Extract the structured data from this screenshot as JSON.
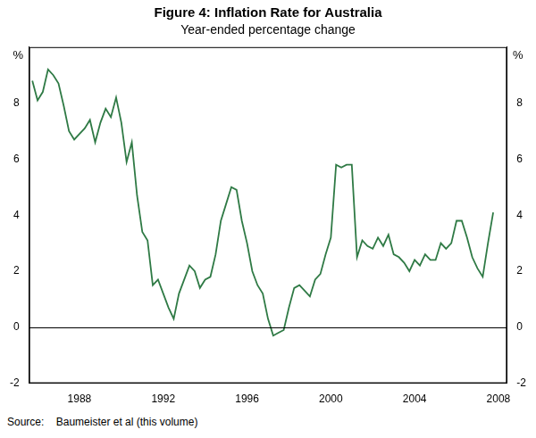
{
  "chart_data": {
    "type": "line",
    "title": "Figure 4: Inflation Rate for Australia",
    "subtitle": "Year-ended percentage change",
    "source_label": "Source:",
    "source": "Baumeister et al (this volume)",
    "y_label": "%",
    "y2_label": "%",
    "color": "#2f7a45",
    "grid": false,
    "x": [
      1985.75,
      1986,
      1986.25,
      1986.5,
      1986.75,
      1987,
      1987.25,
      1987.5,
      1987.75,
      1988,
      1988.25,
      1988.5,
      1988.75,
      1989,
      1989.25,
      1989.5,
      1989.75,
      1990,
      1990.25,
      1990.5,
      1990.75,
      1991,
      1991.25,
      1991.5,
      1991.75,
      1992,
      1992.25,
      1992.5,
      1992.75,
      1993,
      1993.25,
      1993.5,
      1993.75,
      1994,
      1994.25,
      1994.5,
      1994.75,
      1995,
      1995.25,
      1995.5,
      1995.75,
      1996,
      1996.25,
      1996.5,
      1996.75,
      1997,
      1997.25,
      1997.5,
      1997.75,
      1998,
      1998.25,
      1998.5,
      1998.75,
      1999,
      1999.25,
      1999.5,
      1999.75,
      2000,
      2000.25,
      2000.5,
      2000.75,
      2001,
      2001.25,
      2001.5,
      2001.75,
      2002,
      2002.25,
      2002.5,
      2002.75,
      2003,
      2003.25,
      2003.5,
      2003.75,
      2004,
      2004.25,
      2004.5,
      2004.75,
      2005,
      2005.25,
      2005.5,
      2005.75,
      2006,
      2006.25,
      2006.5,
      2006.75,
      2007,
      2007.25,
      2007.5,
      2007.75
    ],
    "values": [
      8.8,
      8.1,
      8.4,
      9.2,
      9.0,
      8.7,
      7.9,
      7.0,
      6.7,
      6.9,
      7.1,
      7.4,
      6.6,
      7.3,
      7.8,
      7.5,
      8.2,
      7.3,
      5.9,
      6.6,
      4.7,
      3.4,
      3.1,
      1.5,
      1.7,
      1.2,
      0.7,
      0.3,
      1.2,
      1.7,
      2.2,
      2.0,
      1.4,
      1.7,
      1.8,
      2.6,
      3.8,
      4.4,
      5.0,
      4.9,
      3.8,
      3.0,
      2.0,
      1.5,
      1.2,
      0.3,
      -0.3,
      -0.2,
      -0.1,
      0.7,
      1.4,
      1.5,
      1.3,
      1.1,
      1.7,
      1.9,
      2.6,
      3.2,
      5.8,
      5.7,
      5.8,
      5.8,
      2.5,
      3.1,
      2.9,
      2.8,
      3.2,
      2.9,
      3.3,
      2.6,
      2.5,
      2.3,
      2.0,
      2.4,
      2.2,
      2.6,
      2.4,
      2.4,
      3.0,
      2.8,
      3.0,
      3.8,
      3.8,
      3.2,
      2.5,
      2.1,
      1.8,
      3.0,
      4.1
    ],
    "xlim": [
      1985.6,
      2008.4
    ],
    "xticks": [
      1988,
      1992,
      1996,
      2000,
      2004,
      2008
    ],
    "ylim": [
      -2,
      10
    ],
    "yticks": [
      -2,
      0,
      2,
      4,
      6,
      8
    ],
    "y2lim": [
      -2,
      10
    ],
    "y2ticks": [
      -2,
      0,
      2,
      4,
      6,
      8
    ]
  }
}
